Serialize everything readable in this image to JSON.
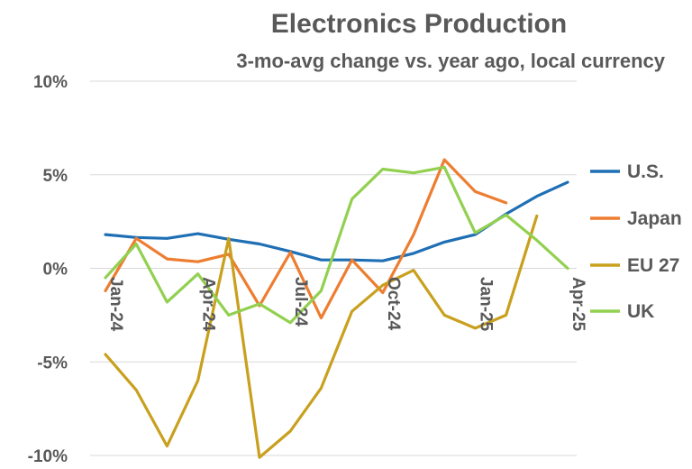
{
  "chart_data": {
    "type": "line",
    "title": "Electronics Production",
    "subtitle": "3-mo-avg change vs. year ago, local currency",
    "ylim": [
      -10,
      10
    ],
    "yticks": [
      "10%",
      "5%",
      "0%",
      "-5%",
      "-10%"
    ],
    "ytick_values": [
      10,
      5,
      0,
      -5,
      -10
    ],
    "categories": [
      "Jan-24",
      "Feb-24",
      "Mar-24",
      "Apr-24",
      "May-24",
      "Jun-24",
      "Jul-24",
      "Aug-24",
      "Sep-24",
      "Oct-24",
      "Nov-24",
      "Dec-24",
      "Jan-25",
      "Feb-25",
      "Mar-25",
      "Apr-25"
    ],
    "xtick_labels": [
      "Jan-24",
      "Apr-24",
      "Jul-24",
      "Oct-24",
      "Jan-25",
      "Apr-25"
    ],
    "xtick_indices": [
      0,
      3,
      6,
      9,
      12,
      15
    ],
    "grid": "horizontal",
    "legend_position": "right",
    "series": [
      {
        "name": "U.S.",
        "color": "#1f6fb5",
        "values": [
          1.8,
          1.65,
          1.6,
          1.85,
          1.55,
          1.3,
          0.9,
          0.45,
          0.45,
          0.4,
          0.8,
          1.4,
          1.8,
          2.9,
          3.85,
          4.6
        ]
      },
      {
        "name": "Japan",
        "color": "#ed7d31",
        "values": [
          -1.2,
          1.6,
          0.5,
          0.35,
          0.75,
          -2.0,
          0.85,
          -2.65,
          0.45,
          -1.3,
          1.8,
          5.8,
          4.1,
          3.5,
          null,
          null
        ]
      },
      {
        "name": "EU 27",
        "color": "#c9a01e",
        "values": [
          -4.6,
          -6.5,
          -9.5,
          -6.0,
          1.6,
          -10.1,
          -8.7,
          -6.4,
          -2.3,
          -0.9,
          -0.1,
          -2.5,
          -3.2,
          -2.5,
          2.8,
          null
        ]
      },
      {
        "name": "UK",
        "color": "#92d050",
        "values": [
          -0.5,
          1.3,
          -1.8,
          -0.3,
          -2.5,
          -1.9,
          -2.9,
          -1.2,
          3.7,
          5.3,
          5.1,
          5.4,
          1.9,
          2.85,
          1.5,
          0.0
        ]
      }
    ]
  }
}
